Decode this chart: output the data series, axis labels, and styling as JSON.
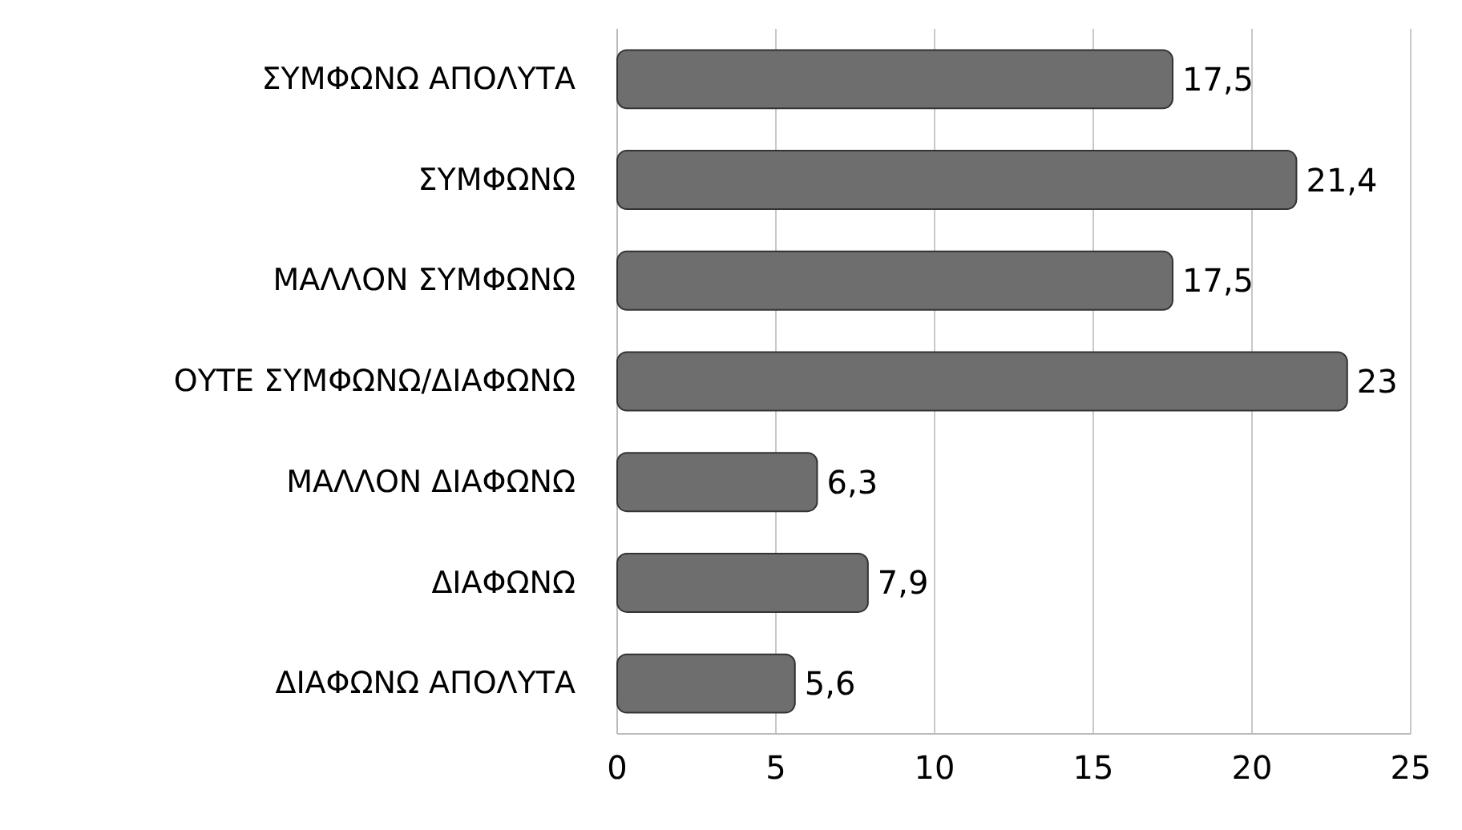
{
  "chart_data": {
    "type": "bar",
    "orientation": "horizontal",
    "categories": [
      "ΣΥΜΦΩΝΩ ΑΠΟΛΥΤΑ",
      "ΣΥΜΦΩΝΩ",
      "ΜΑΛΛΟΝ ΣΥΜΦΩΝΩ",
      "ΟΥΤΕ ΣΥΜΦΩΝΩ/ΔΙΑΦΩΝΩ",
      "ΜΑΛΛΟΝ ΔΙΑΦΩΝΩ",
      "ΔΙΑΦΩΝΩ",
      "ΔΙΑΦΩΝΩ ΑΠΟΛΥΤΑ"
    ],
    "values": [
      17.5,
      21.4,
      17.5,
      23,
      6.3,
      7.9,
      5.6
    ],
    "value_labels": [
      "17,5",
      "21,4",
      "17,5",
      "23",
      "6,3",
      "7,9",
      "5,6"
    ],
    "color": "#6e6e6e",
    "xlim": [
      0,
      25
    ],
    "xticks": [
      0,
      5,
      10,
      15,
      20,
      25
    ],
    "grid": "x"
  }
}
